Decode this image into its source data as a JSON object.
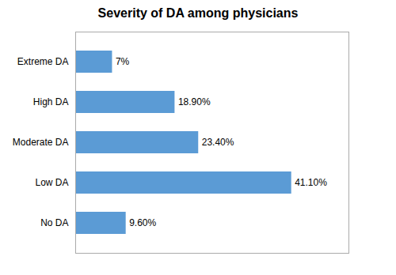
{
  "chart_data": {
    "type": "bar",
    "orientation": "horizontal",
    "title": "Severity of DA among physicians",
    "categories": [
      "No DA",
      "Low DA",
      "Moderate DA",
      "High DA",
      "Extreme DA"
    ],
    "values": [
      9.6,
      41.1,
      23.4,
      18.9,
      7.0
    ],
    "value_labels": [
      "9.60%",
      "41.10%",
      "23.40%",
      "18.90%",
      "7%"
    ],
    "color": "#5B9BD5",
    "xlim": [
      0,
      52
    ],
    "grid": false,
    "data_labels": true,
    "tick_labels": "y"
  }
}
